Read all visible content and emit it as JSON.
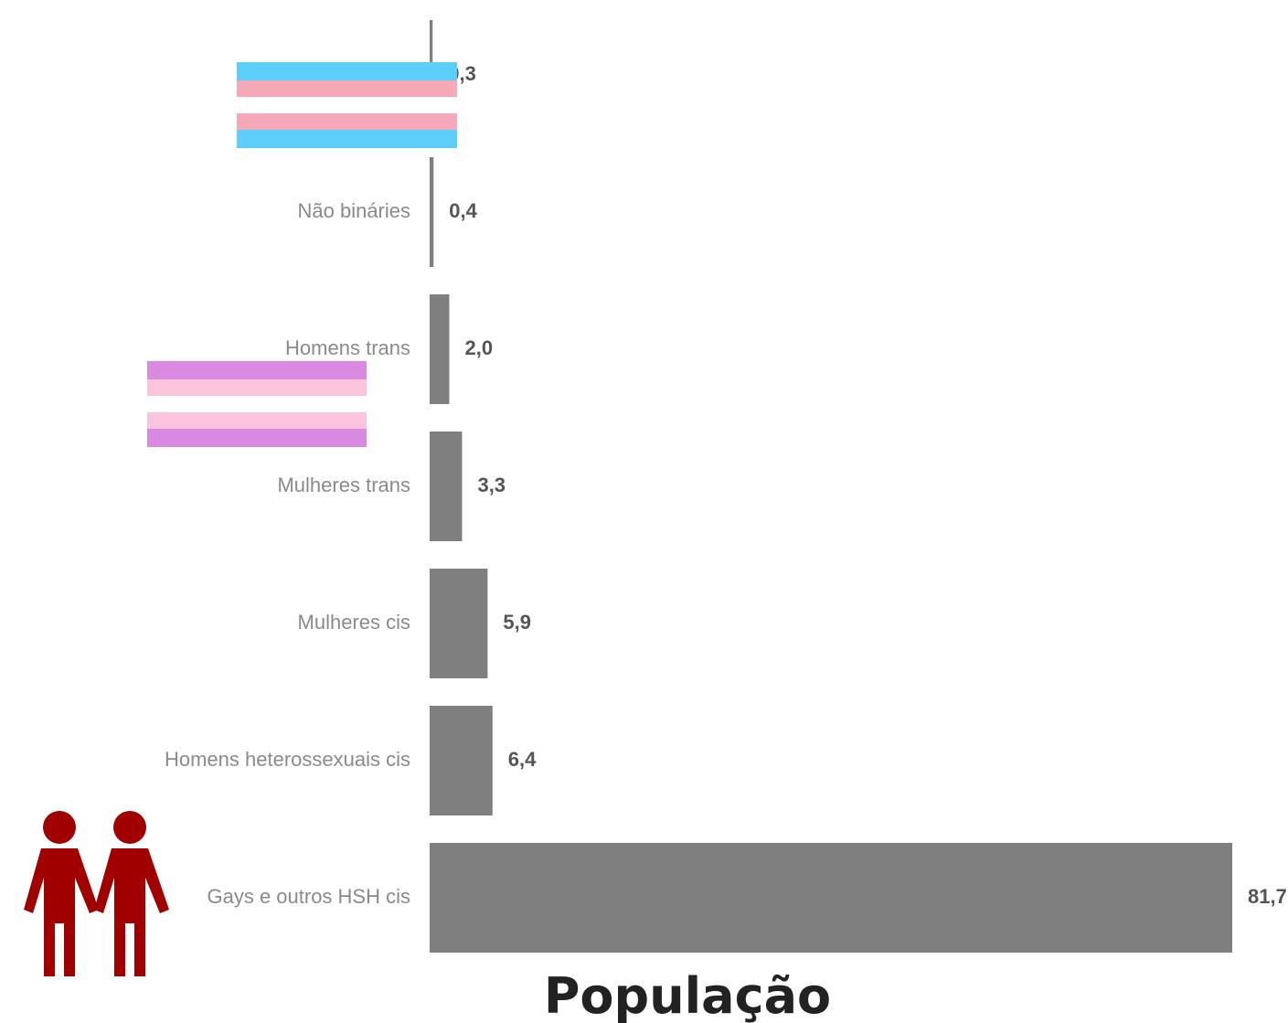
{
  "chart_data": {
    "type": "bar",
    "orientation": "horizontal",
    "title": "População",
    "categories": [
      null,
      "Não binári​es",
      "Homens trans",
      "Mulheres trans",
      "Mulheres cis",
      "Homens heterossexuais cis",
      "Gays e outros HSH cis"
    ],
    "values": [
      0.3,
      0.4,
      2.0,
      3.3,
      5.9,
      6.4,
      81.7
    ],
    "value_labels": [
      "0,3",
      "0,4",
      "2,0",
      "3,3",
      "5,9",
      "6,4",
      "81,7"
    ],
    "color": "#7f7f7f"
  }
}
